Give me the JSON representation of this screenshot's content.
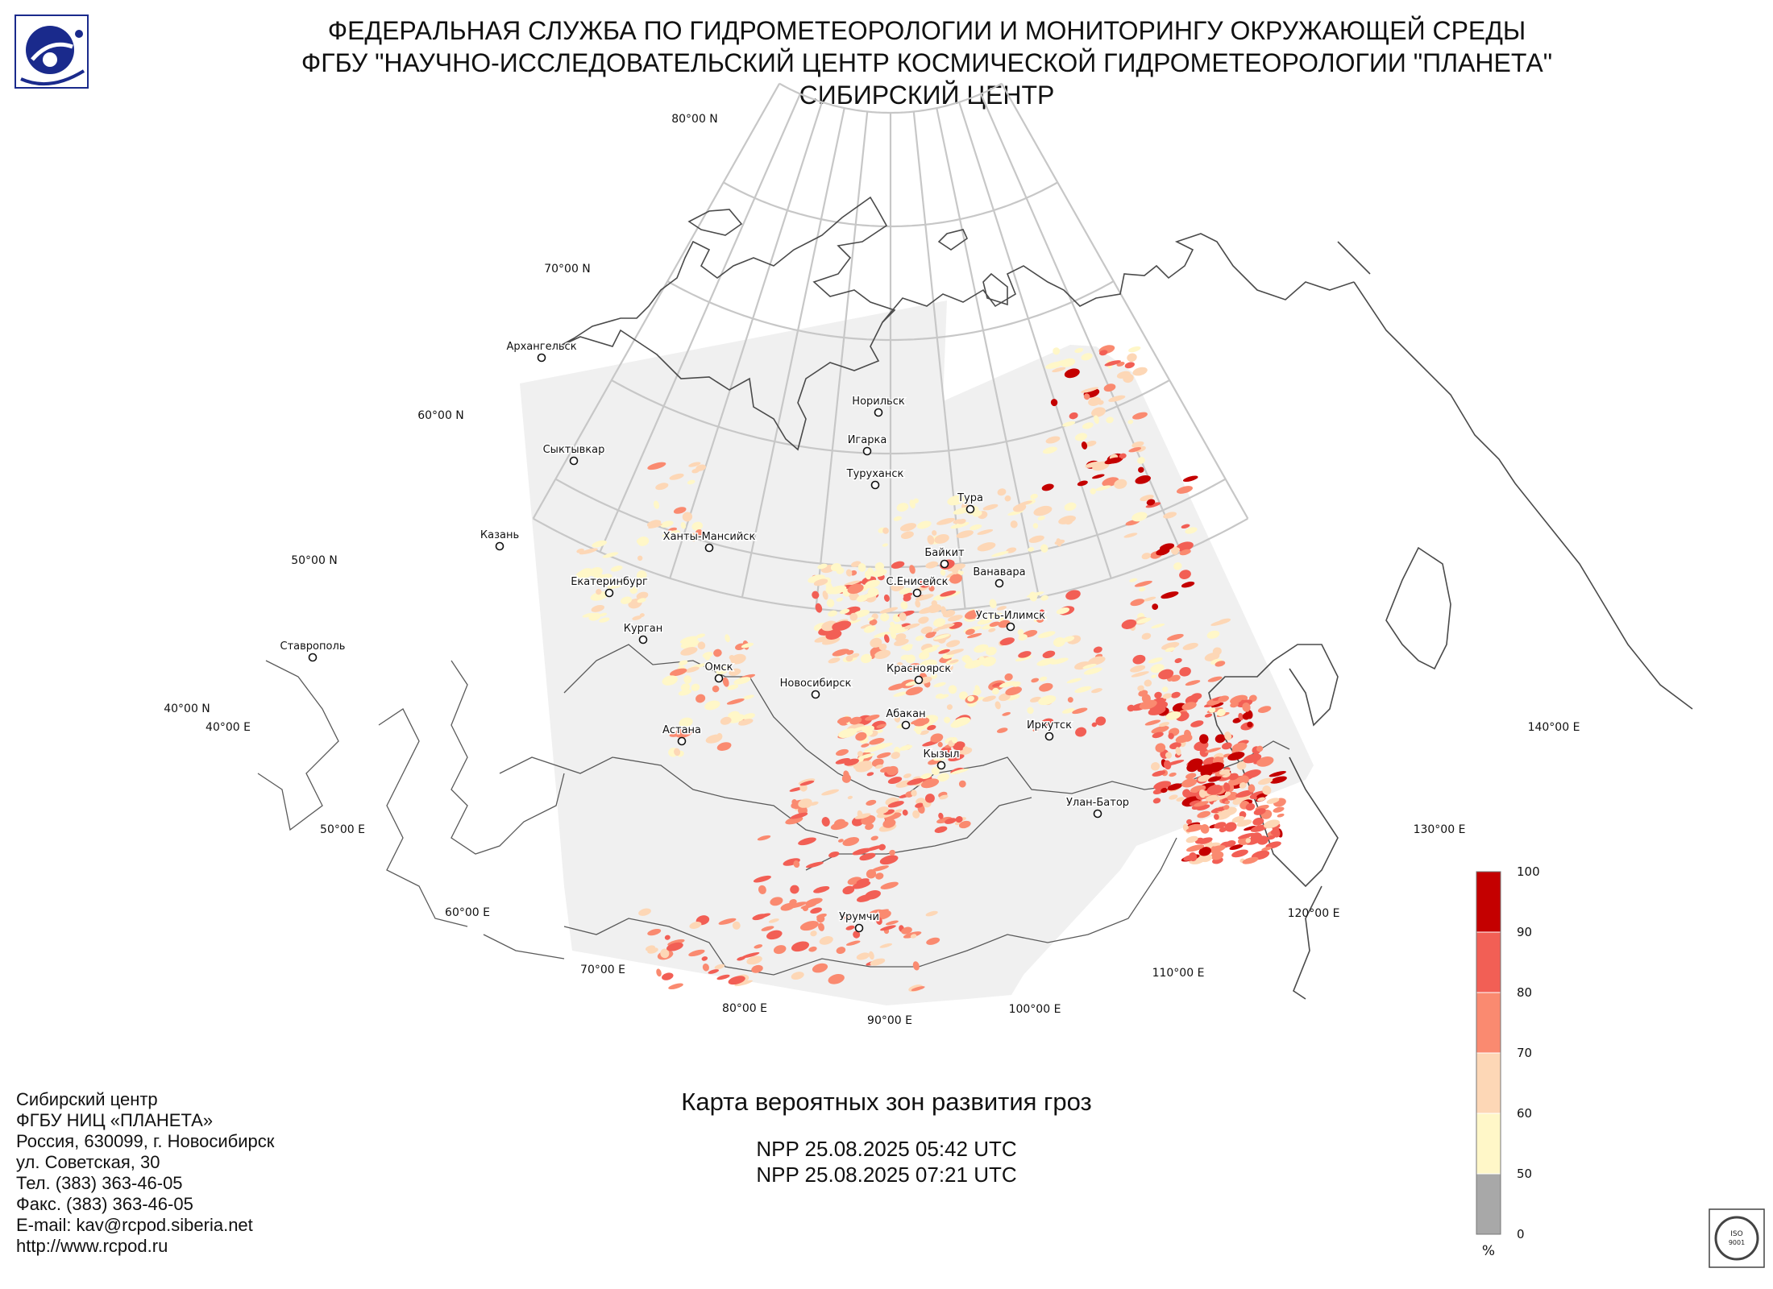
{
  "header": {
    "line1": "ФЕДЕРАЛЬНАЯ СЛУЖБА ПО ГИДРОМЕТЕОРОЛОГИИ И МОНИТОРИНГУ ОКРУЖАЮЩЕЙ СРЕДЫ",
    "line2": "ФГБУ \"НАУЧНО-ИССЛЕДОВАТЕЛЬСКИЙ ЦЕНТР КОСМИЧЕСКОЙ ГИДРОМЕТЕОРОЛОГИИ \"ПЛАНЕТА\"",
    "line3": "СИБИРСКИЙ ЦЕНТР"
  },
  "map_title": "Карта вероятных зон развития гроз",
  "passes": [
    "NPP 25.08.2025  05:42 UTC",
    "NPP 25.08.2025  07:21 UTC"
  ],
  "contacts": [
    "Сибирский центр",
    "ФГБУ НИЦ «ПЛАНЕТА»",
    "Россия, 630099, г. Новосибирск",
    "ул. Советская, 30",
    "Тел. (383) 363-46-05",
    "Факс. (383) 363-46-05",
    "E-mail: kav@rcpod.siberia.net",
    "http://www.rcpod.ru"
  ],
  "lat_labels": [
    "80°00 N",
    "70°00 N",
    "60°00 N",
    "50°00 N",
    "40°00 N"
  ],
  "lon_labels": [
    "40°00 E",
    "50°00 E",
    "60°00 E",
    "70°00 E",
    "80°00 E",
    "90°00 E",
    "100°00 E",
    "110°00 E",
    "120°00 E",
    "130°00 E",
    "140°00 E"
  ],
  "cities": [
    "Архангельск",
    "Сыктывкар",
    "Казань",
    "Екатеринбург",
    "Ставрополь",
    "Курган",
    "Ханты-Мансийск",
    "Омск",
    "Астана",
    "Новосибирск",
    "Норильск",
    "Игарка",
    "Туруханск",
    "Тура",
    "Байкит",
    "С.Енисейск",
    "Ванавара",
    "Усть-Илимск",
    "Красноярск",
    "Абакан",
    "Иркутск",
    "Кызыл",
    "Улан-Батор",
    "Урумчи"
  ],
  "legend": {
    "ticks": [
      "100",
      "90",
      "80",
      "70",
      "60",
      "50",
      "0"
    ],
    "unit": "%",
    "classes": [
      {
        "range": "90-100",
        "color": "#c40000"
      },
      {
        "range": "80-90",
        "color": "#f25f55"
      },
      {
        "range": "70-80",
        "color": "#fa8a70"
      },
      {
        "range": "60-70",
        "color": "#fdd7b6"
      },
      {
        "range": "50-60",
        "color": "#fff7c8"
      },
      {
        "range": "0-50",
        "color": "#a8a8a8"
      }
    ]
  },
  "colors": {
    "coverage": "#f0f0f0",
    "grid": "#c7c7c7",
    "coast": "#4a4a4a",
    "logo": "#1a2a8c"
  },
  "logos": {
    "iso_text": "ISO 9001-2015"
  }
}
